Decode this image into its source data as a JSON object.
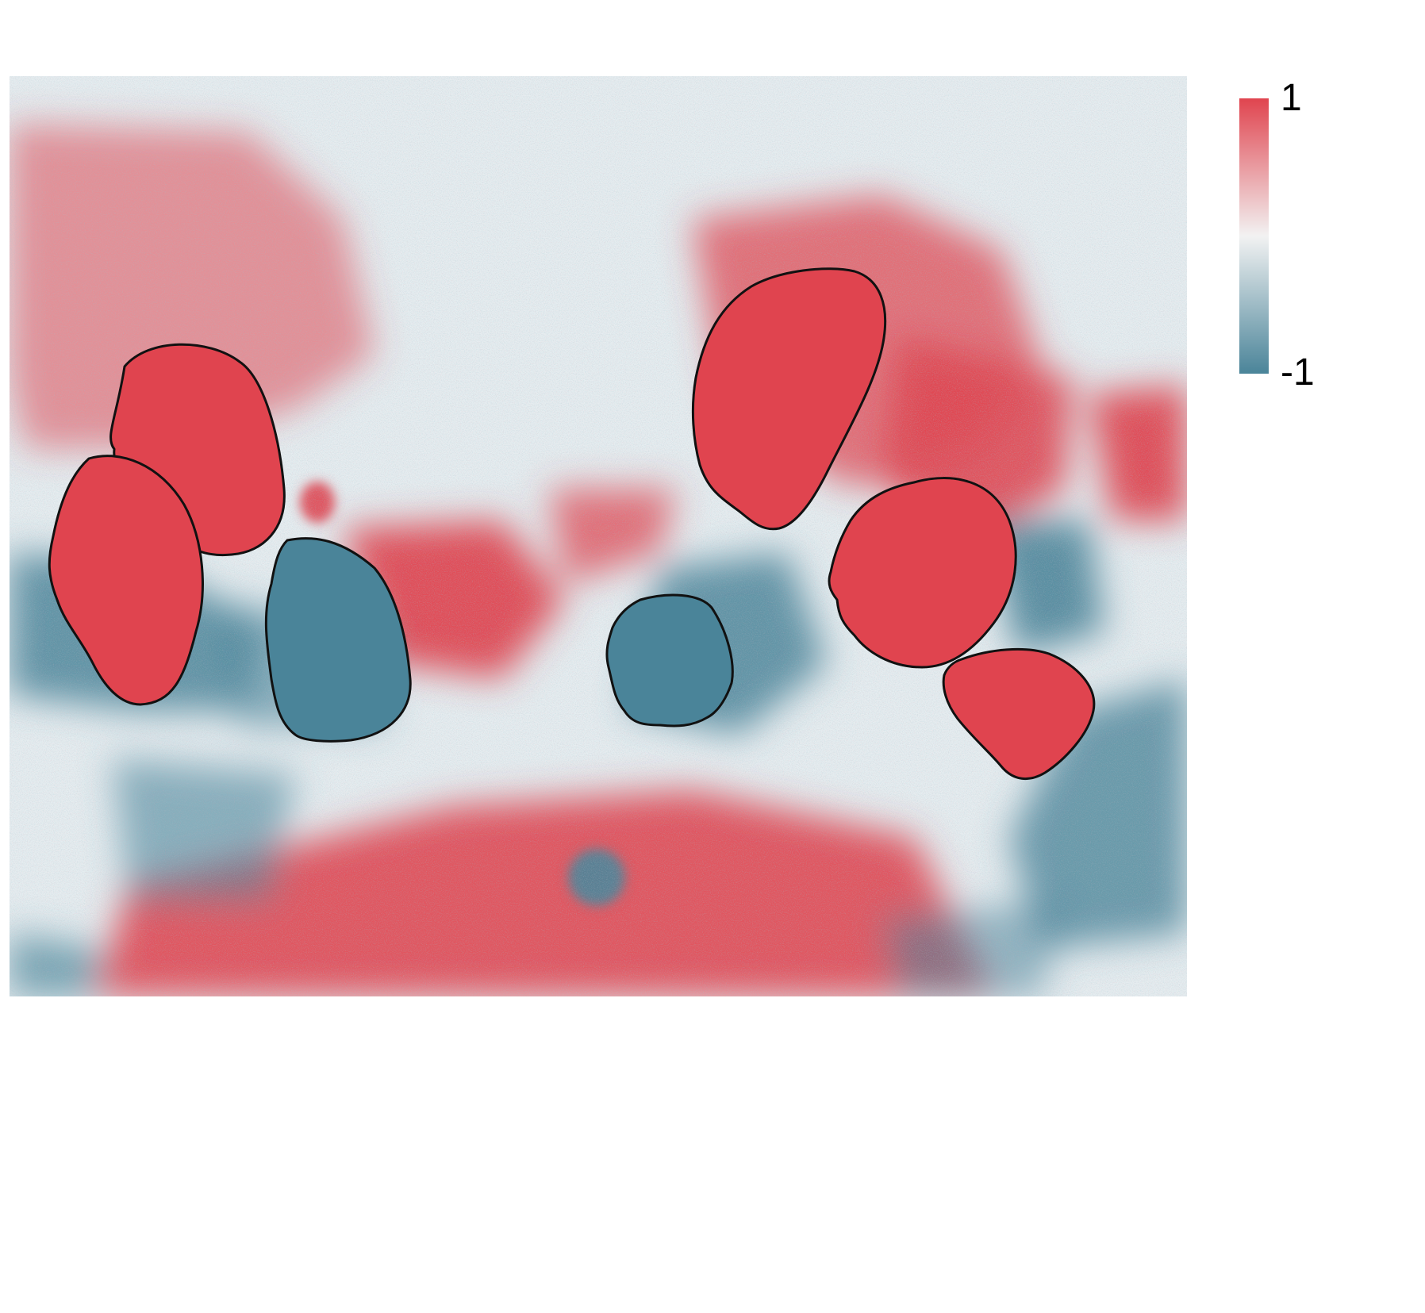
{
  "figure": {
    "colormap": {
      "high_color": "#E0444F",
      "mid_color": "#F2F2F2",
      "low_color": "#4A8499"
    },
    "colorbar": {
      "max_label": "1",
      "min_label": "-1",
      "max_value": 1,
      "min_value": -1
    },
    "outlined_cells": [
      {
        "id": "cell-1",
        "sign": "positive"
      },
      {
        "id": "cell-2",
        "sign": "positive"
      },
      {
        "id": "cell-3",
        "sign": "negative"
      },
      {
        "id": "cell-4",
        "sign": "negative"
      },
      {
        "id": "cell-5",
        "sign": "positive"
      },
      {
        "id": "cell-6",
        "sign": "positive"
      },
      {
        "id": "cell-7",
        "sign": "positive"
      }
    ]
  }
}
